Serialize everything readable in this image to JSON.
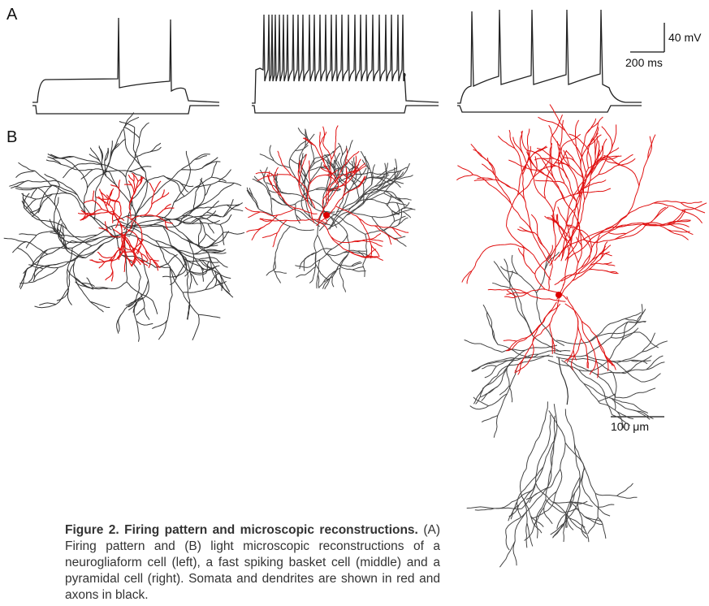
{
  "panel_labels": {
    "a": "A",
    "b": "B"
  },
  "scale_bars": {
    "voltage": "40 mV",
    "time": "200 ms",
    "length": "100 μm"
  },
  "caption": {
    "title": "Figure 2. Firing pattern and microscopic reconstructions.",
    "text": "(A) Firing pattern and (B) light microscopic reconstructions of a neurogliaform cell (left), a fast spiking basket cell (middle) and a pyramidal cell (right). Somata and dendrites are shown in red and axons in black."
  }
}
